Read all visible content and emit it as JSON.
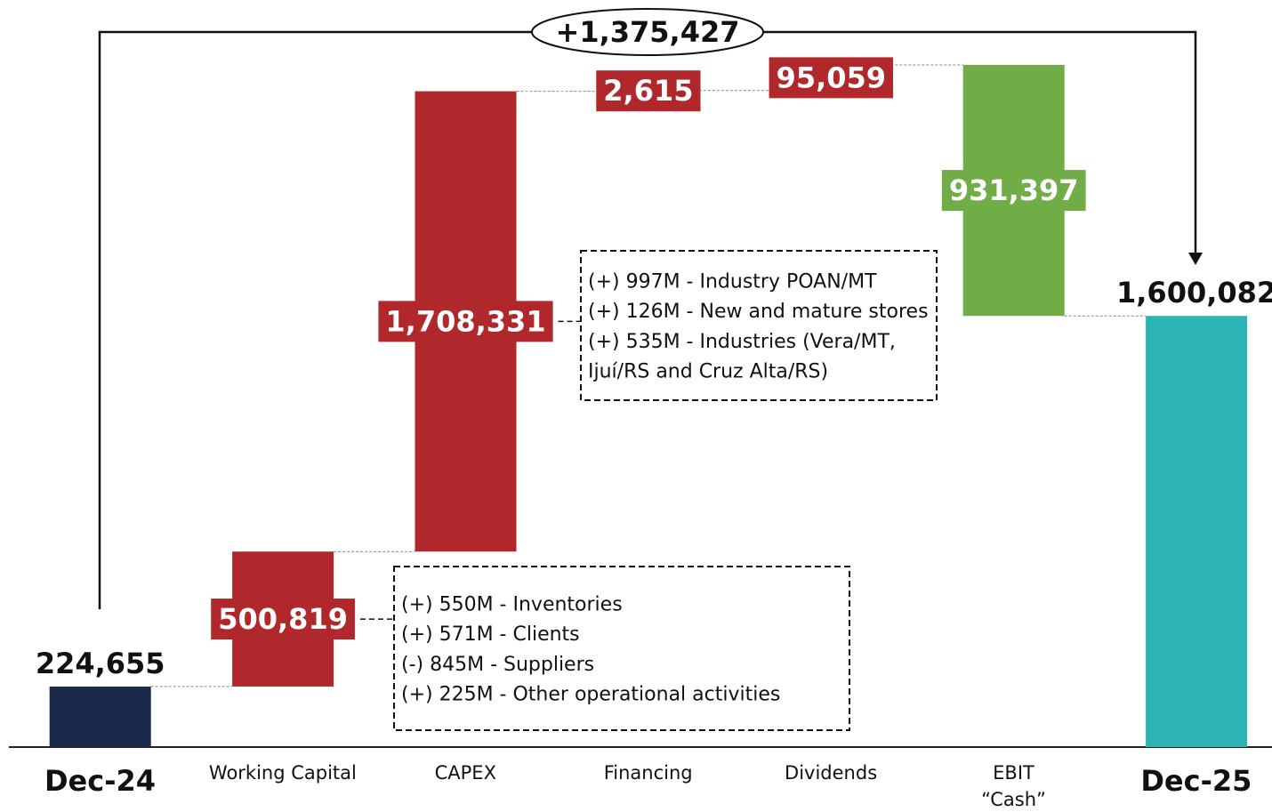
{
  "chart_data": {
    "type": "waterfall",
    "total_change": "+1,375,427",
    "categories": [
      "Dec-24",
      "Working Capital",
      "CAPEX",
      "Financing",
      "Dividends",
      "EBIT\n“Cash”",
      "Dec-25"
    ],
    "measure": [
      "absolute",
      "relative",
      "relative",
      "relative",
      "relative",
      "relative",
      "total"
    ],
    "values": [
      224655,
      500819,
      1708331,
      2615,
      95059,
      -931397,
      1600082
    ],
    "value_labels": [
      "224,655",
      "500,819",
      "1,708,331",
      "2,615",
      "95,059",
      "931,397",
      "1,600,082"
    ],
    "colors": [
      "#1b2a4a",
      "#b0282b",
      "#b0282b",
      "#b0282b",
      "#b0282b",
      "#70ad47",
      "#2db3b3"
    ],
    "notes": [
      {
        "lines": [
          "(+) 997M - Industry POAN/MT",
          "(+) 126M - New and mature stores",
          "(+) 535M - Industries (Vera/MT,",
          "Ijuí/RS and Cruz Alta/RS)"
        ]
      },
      {
        "lines": [
          "(+) 550M - Inventories",
          "(+) 571M - Clients",
          "(-) 845M - Suppliers",
          "(+) 225M - Other operational activities"
        ]
      }
    ]
  }
}
